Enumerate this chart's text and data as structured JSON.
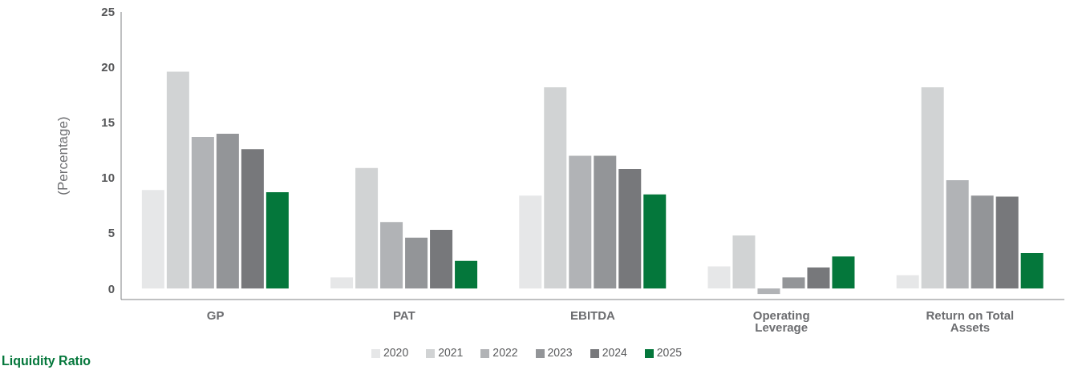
{
  "chart_data": {
    "type": "bar",
    "ylabel": "(Percentage)",
    "categories": [
      "GP",
      "PAT",
      "EBITDA",
      "Operating Leverage",
      "Return on Total Assets"
    ],
    "series": [
      {
        "name": "2020",
        "color": "#e6e7e8",
        "values": [
          8.9,
          1.0,
          8.4,
          2.0,
          1.2
        ]
      },
      {
        "name": "2021",
        "color": "#d1d3d4",
        "values": [
          19.6,
          10.9,
          18.2,
          4.8,
          18.2
        ]
      },
      {
        "name": "2022",
        "color": "#b1b3b6",
        "values": [
          13.7,
          6.0,
          12.0,
          -0.5,
          9.8
        ]
      },
      {
        "name": "2023",
        "color": "#939598",
        "values": [
          14.0,
          4.6,
          12.0,
          1.0,
          8.4
        ]
      },
      {
        "name": "2024",
        "color": "#77787b",
        "values": [
          12.6,
          5.3,
          10.8,
          1.9,
          8.3
        ]
      },
      {
        "name": "2025",
        "color": "#04773b",
        "values": [
          8.7,
          2.5,
          8.5,
          2.9,
          3.2
        ]
      }
    ],
    "ylim": [
      -1,
      25
    ],
    "yticks": [
      0,
      5,
      10,
      15,
      20,
      25
    ],
    "grid": false,
    "legend": "bottom",
    "annotations": [
      "Liquidity Ratio"
    ]
  }
}
